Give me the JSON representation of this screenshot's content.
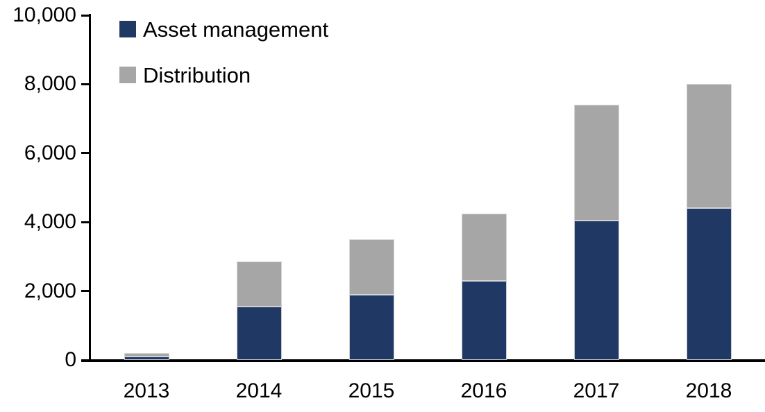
{
  "chart_data": {
    "type": "bar",
    "stacked": true,
    "title": "",
    "xlabel": "",
    "ylabel": "",
    "categories": [
      "2013",
      "2014",
      "2015",
      "2016",
      "2017",
      "2018"
    ],
    "series": [
      {
        "name": "Asset management",
        "color": "#1F3864",
        "values": [
          100,
          1550,
          1900,
          2300,
          4050,
          4400
        ]
      },
      {
        "name": "Distribution",
        "color": "#A6A6A6",
        "values": [
          100,
          1300,
          1600,
          1950,
          3350,
          3600
        ]
      }
    ],
    "totals": [
      200,
      2850,
      3500,
      4250,
      7400,
      8000
    ],
    "ylim": [
      0,
      10000
    ],
    "ytick_values": [
      0,
      2000,
      4000,
      6000,
      8000,
      10000
    ],
    "ytick_labels": [
      "0",
      "2,000",
      "4,000",
      "6,000",
      "8,000",
      "10,000"
    ],
    "grid": false,
    "legend_position": "top-left-inside",
    "axis_color": "#000000",
    "text_color": "#000000",
    "background_color": "#FFFFFF"
  }
}
